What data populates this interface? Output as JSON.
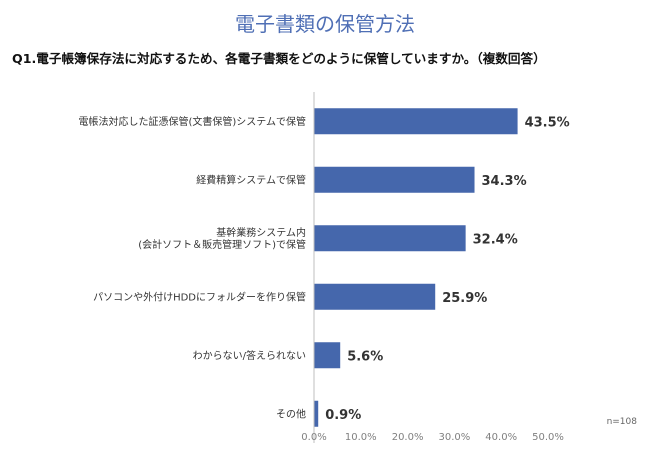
{
  "page": {
    "title": "電子書類の保管方法",
    "question": "Q1.電子帳簿保存法に対応するため、各電子書類をどのように保管していますか。（複数回答）",
    "sample_note": "n=108"
  },
  "chart_data": {
    "type": "bar",
    "orientation": "horizontal",
    "categories": [
      [
        "電帳法対応した証憑保管(文書保管)システムで保管"
      ],
      [
        "経費精算システムで保管"
      ],
      [
        "基幹業務システム内",
        "(会計ソフト＆販売管理ソフト)で保管"
      ],
      [
        "パソコンや外付けHDDにフォルダーを作り保管"
      ],
      [
        "わからない/答えられない"
      ],
      [
        "その他"
      ]
    ],
    "values": [
      43.5,
      34.3,
      32.4,
      25.9,
      5.6,
      0.9
    ],
    "value_labels": [
      "43.5%",
      "34.3%",
      "32.4%",
      "25.9%",
      "5.6%",
      "0.9%"
    ],
    "xlim": [
      0,
      50
    ],
    "xticks": [
      0,
      10,
      20,
      30,
      40,
      50
    ],
    "xtick_labels": [
      "0.0%",
      "10.0%",
      "20.0%",
      "30.0%",
      "40.0%",
      "50.0%"
    ],
    "bar_color": "#4567ac",
    "grid": false
  }
}
